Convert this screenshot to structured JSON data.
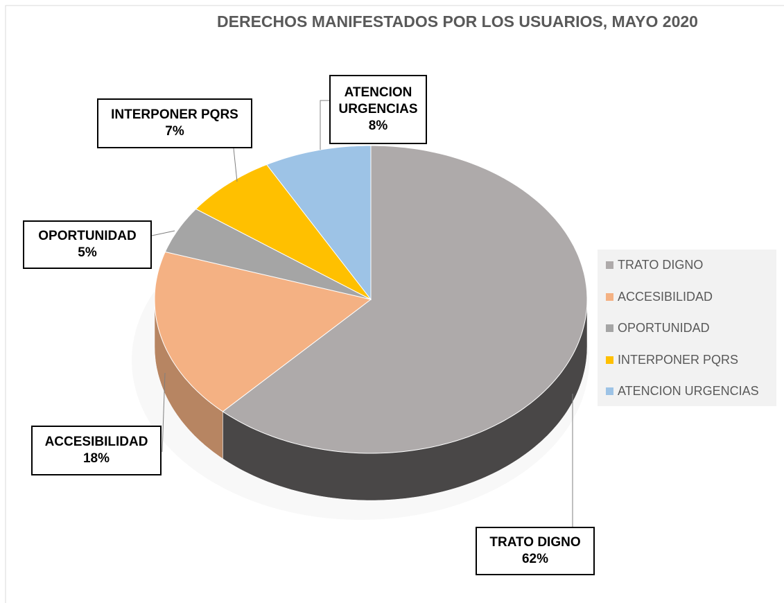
{
  "chart_data": {
    "type": "pie",
    "title": "DERECHOS MANIFESTADOS POR LOS USUARIOS, MAYO 2020",
    "categories": [
      "TRATO DIGNO",
      "ACCESIBILIDAD",
      "OPORTUNIDAD",
      "INTERPONER PQRS",
      "ATENCION URGENCIAS"
    ],
    "values": [
      62,
      18,
      5,
      7,
      8
    ],
    "value_labels": [
      "62%",
      "18%",
      "5%",
      "7%",
      "8%"
    ],
    "colors": [
      "#aeaaaa",
      "#f4b183",
      "#a5a5a5",
      "#ffc000",
      "#9dc3e6"
    ],
    "legend": "right"
  }
}
